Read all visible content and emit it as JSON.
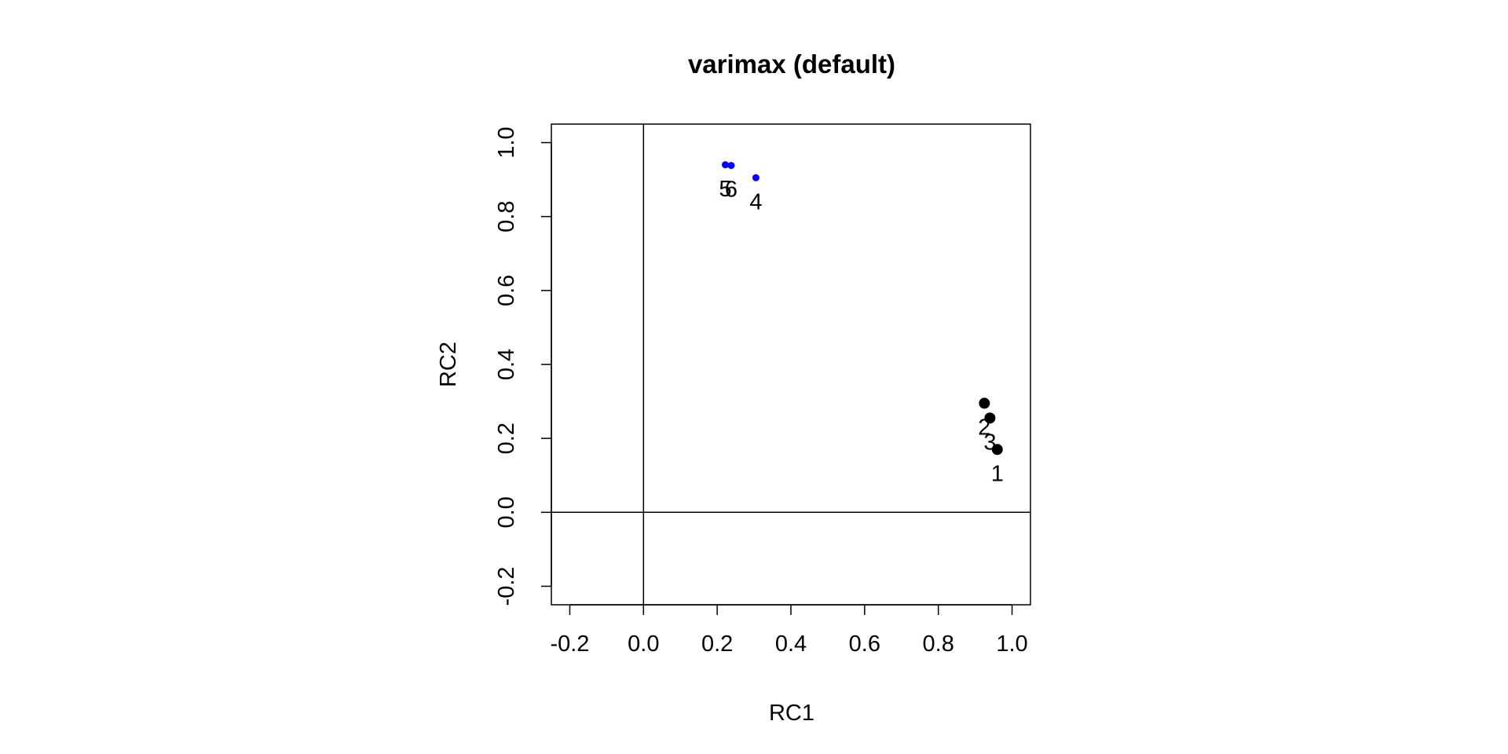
{
  "chart_data": {
    "type": "scatter",
    "title": "varimax (default)",
    "xlabel": "RC1",
    "ylabel": "RC2",
    "xlim": [
      -0.25,
      1.05
    ],
    "ylim": [
      -0.25,
      1.05
    ],
    "x_ticks": [
      "-0.2",
      "0.0",
      "0.2",
      "0.4",
      "0.6",
      "0.8",
      "1.0"
    ],
    "y_ticks": [
      "-0.2",
      "0.0",
      "0.2",
      "0.4",
      "0.6",
      "0.8",
      "1.0"
    ],
    "reference_lines": {
      "x": 0,
      "y": 0
    },
    "grid": false,
    "legend": "none",
    "series": [
      {
        "color": "#000000",
        "points": [
          {
            "label": "1",
            "x": 0.96,
            "y": 0.17
          },
          {
            "label": "2",
            "x": 0.925,
            "y": 0.295
          },
          {
            "label": "3",
            "x": 0.94,
            "y": 0.255
          }
        ]
      },
      {
        "color": "#0000ff",
        "points": [
          {
            "label": "4",
            "x": 0.305,
            "y": 0.905
          },
          {
            "label": "5",
            "x": 0.222,
            "y": 0.94
          },
          {
            "label": "6",
            "x": 0.238,
            "y": 0.938
          }
        ]
      }
    ]
  }
}
